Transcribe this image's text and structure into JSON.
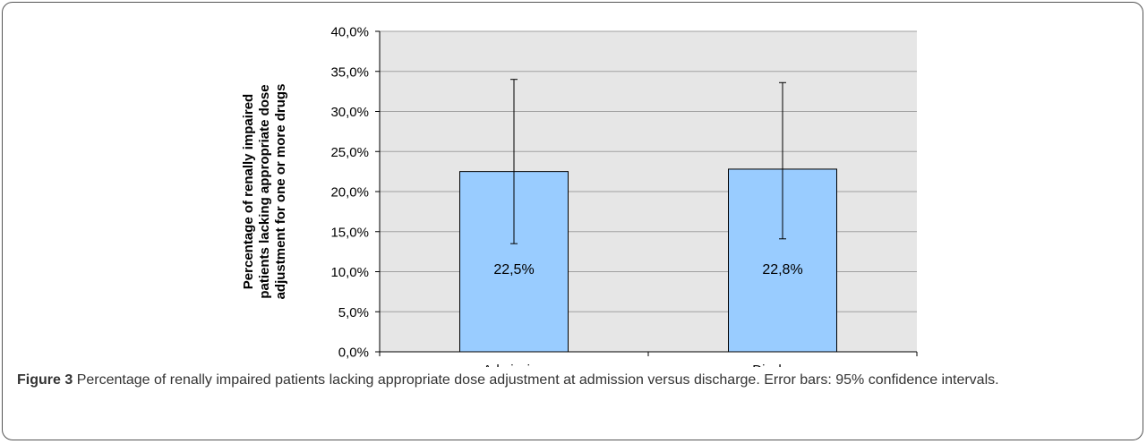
{
  "chart_data": {
    "type": "bar",
    "categories": [
      "Admission",
      "Discharge"
    ],
    "values": [
      22.5,
      22.8
    ],
    "value_labels": [
      "22,5%",
      "22,8%"
    ],
    "error_bars": [
      {
        "low": 13.5,
        "high": 34.0
      },
      {
        "low": 14.1,
        "high": 33.6
      }
    ],
    "ylabel_lines": [
      "Percentage of renally impaired",
      "patients lacking appropriate dose",
      "adjustment for one or more drugs"
    ],
    "ylim": [
      0,
      40
    ],
    "yticks": [
      0,
      5,
      10,
      15,
      20,
      25,
      30,
      35,
      40
    ],
    "ytick_labels": [
      "0,0%",
      "5,0%",
      "10,0%",
      "15,0%",
      "20,0%",
      "25,0%",
      "30,0%",
      "35,0%",
      "40,0%"
    ],
    "grid": true,
    "colors": {
      "bar": "#99ccff",
      "plot_bg": "#e6e6e6",
      "grid": "#a0a0a0"
    }
  },
  "caption": {
    "label": "Figure 3",
    "text": "Percentage of renally impaired patients lacking appropriate dose adjustment at admission versus discharge. Error bars: 95% confidence intervals."
  }
}
